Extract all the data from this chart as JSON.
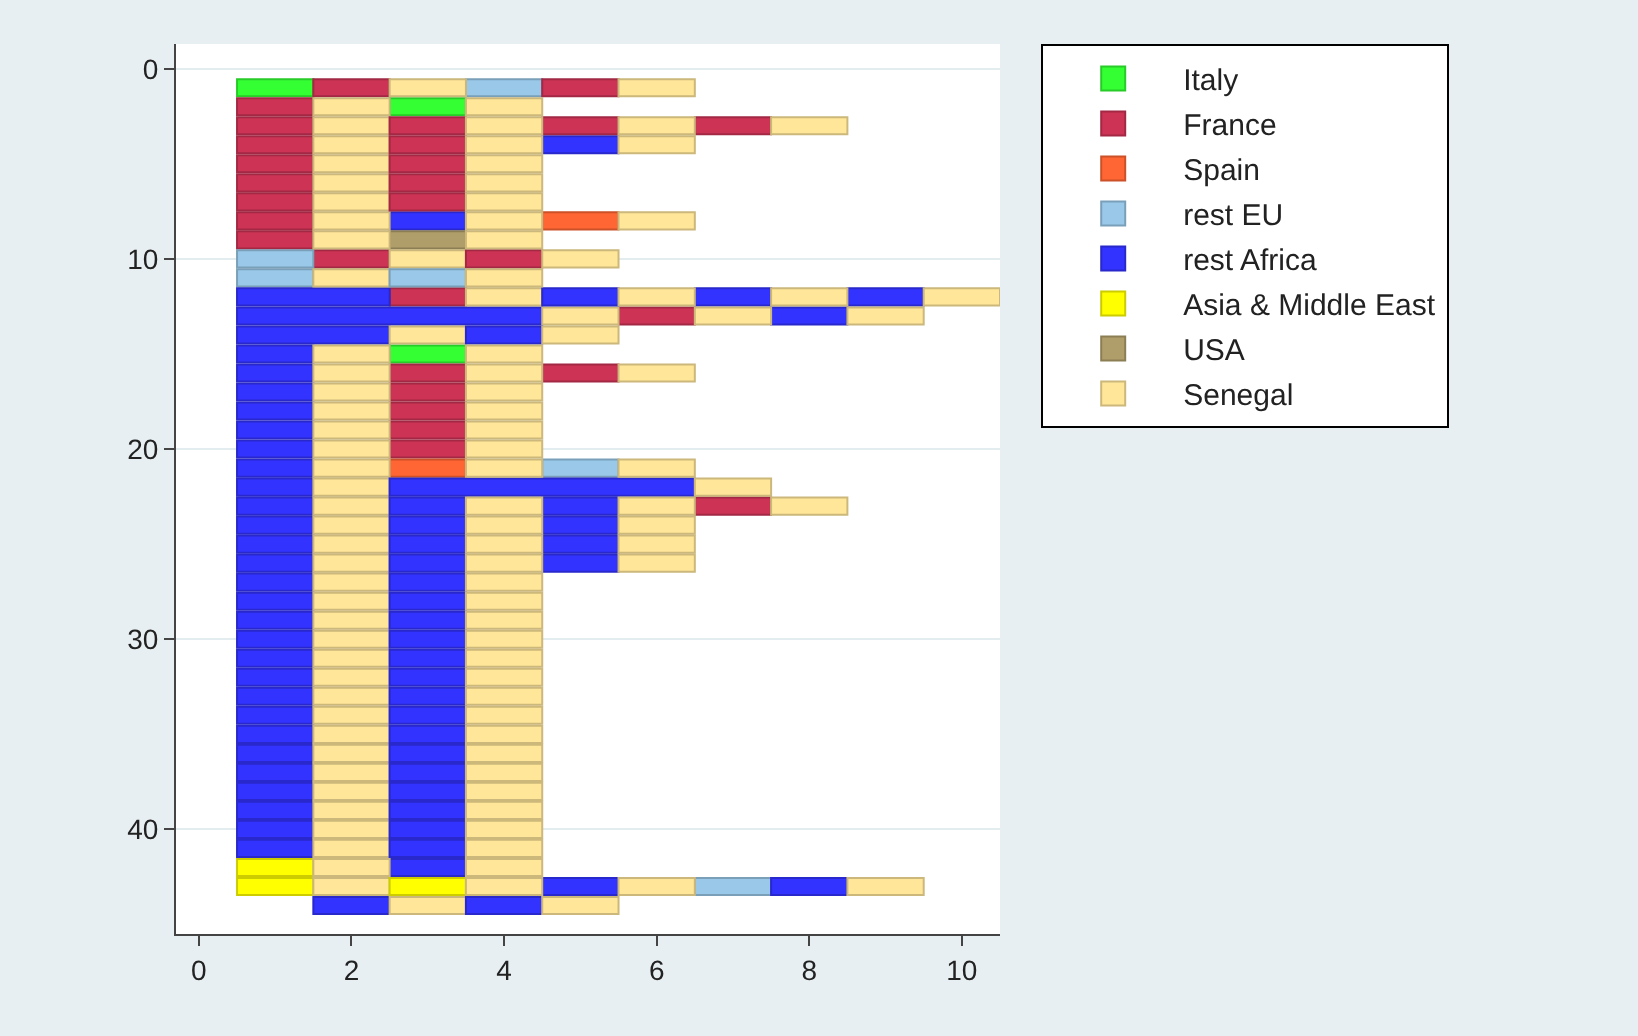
{
  "chart_data": {
    "type": "bar",
    "orientation": "horizontal",
    "xlim": [
      -0.3,
      10.5
    ],
    "xticks": [
      0,
      2,
      4,
      6,
      8,
      10
    ],
    "ylim": [
      45.5,
      -1.3
    ],
    "yticks": [
      0,
      10,
      20,
      30,
      40
    ],
    "grid": "y",
    "legend": "top right",
    "series": [
      {
        "name": "Italy",
        "color": "#33ff33",
        "x": [
          1,
          2,
          15
        ],
        "base": [
          0.5,
          2.5,
          2.5
        ],
        "values": [
          1,
          1,
          1
        ]
      },
      {
        "name": "France",
        "color": "#cc3355",
        "x": [
          1,
          2,
          3,
          4,
          5,
          6,
          7,
          8,
          9,
          10,
          12,
          13,
          16,
          17,
          18,
          19,
          20,
          23
        ],
        "base": [
          1.5,
          0.5,
          0.5,
          0.5,
          0.5,
          0.5,
          0.5,
          0.5,
          0.5,
          1.5,
          2.5,
          5.5,
          2.5,
          2.5,
          2.5,
          2.5,
          2.5,
          6.5
        ],
        "values": [
          1,
          1,
          1,
          1,
          1,
          1,
          1,
          1,
          1,
          1,
          1,
          1,
          1,
          1,
          1,
          1,
          1,
          1
        ]
      },
      {
        "name": "Spain",
        "color": "#ff6633",
        "x": [
          8,
          21
        ],
        "base": [
          4.5,
          2.5
        ],
        "values": [
          1,
          1
        ]
      },
      {
        "name": "rest EU",
        "color": "#99c8e8",
        "x": [
          1,
          10,
          11,
          21,
          43
        ],
        "base": [
          3.5,
          0.5,
          0.5,
          4.5,
          6.5
        ],
        "values": [
          1,
          1,
          1,
          1,
          1
        ]
      },
      {
        "name": "rest Africa",
        "color": "#3333ff",
        "x": [
          4,
          8,
          12,
          13,
          14,
          15,
          16,
          17,
          18,
          19,
          20,
          21,
          22,
          23,
          24,
          25,
          26,
          27,
          28,
          29,
          30,
          31,
          32,
          33,
          34,
          35,
          36,
          37,
          38,
          39,
          40,
          41,
          42,
          43,
          44
        ],
        "base": [
          4.5,
          2.5,
          0.5,
          0.5,
          0.5,
          0.5,
          0.5,
          0.5,
          0.5,
          0.5,
          0.5,
          0.5,
          0.5,
          0.5,
          0.5,
          0.5,
          0.5,
          0.5,
          0.5,
          0.5,
          0.5,
          0.5,
          0.5,
          0.5,
          0.5,
          0.5,
          0.5,
          0.5,
          0.5,
          0.5,
          0.5,
          0.5,
          2.5,
          4.5,
          1.5
        ],
        "values": [
          1,
          1,
          2,
          4,
          2,
          1,
          1,
          1,
          1,
          1,
          1,
          1,
          1,
          1,
          1,
          1,
          1,
          1,
          1,
          1,
          1,
          1,
          1,
          1,
          1,
          1,
          1,
          1,
          1,
          1,
          1,
          1,
          1,
          1,
          1
        ]
      },
      {
        "name": "Asia & Middle East",
        "color": "#ffff00",
        "x": [
          42,
          43
        ],
        "base": [
          0.5,
          0.5
        ],
        "values": [
          1,
          1
        ]
      },
      {
        "name": "USA",
        "color": "#b09e6a",
        "x": [
          9
        ],
        "base": [
          2.5
        ],
        "values": [
          1
        ]
      },
      {
        "name": "Senegal",
        "color": "#ffe699",
        "x": [
          1,
          2,
          3,
          4,
          5,
          6,
          7,
          8,
          9,
          10,
          11,
          12,
          13,
          14,
          15,
          16,
          17,
          18,
          19,
          20,
          21,
          22,
          23,
          24,
          25,
          26,
          27,
          28,
          29,
          30,
          31,
          32,
          33,
          34,
          35,
          36,
          37,
          38,
          39,
          40,
          41,
          42,
          43,
          44
        ],
        "base": [
          2.5,
          1.5,
          1.5,
          1.5,
          1.5,
          1.5,
          1.5,
          1.5,
          1.5,
          2.5,
          1.5,
          3.5,
          4.5,
          2.5,
          1.5,
          1.5,
          1.5,
          1.5,
          1.5,
          1.5,
          1.5,
          1.5,
          1.5,
          1.5,
          1.5,
          1.5,
          1.5,
          1.5,
          1.5,
          1.5,
          1.5,
          1.5,
          1.5,
          1.5,
          1.5,
          1.5,
          1.5,
          1.5,
          1.5,
          1.5,
          1.5,
          1.5,
          1.5,
          2.5
        ],
        "values": [
          1,
          1,
          1,
          1,
          1,
          1,
          1,
          1,
          1,
          1,
          1,
          1,
          1,
          1,
          1,
          1,
          1,
          1,
          1,
          1,
          1,
          1,
          1,
          1,
          1,
          1,
          1,
          1,
          1,
          1,
          1,
          1,
          1,
          1,
          1,
          1,
          1,
          1,
          1,
          1,
          1,
          1,
          1,
          1
        ]
      },
      {
        "color": "#cc3355",
        "x": [
          1,
          3,
          4,
          5,
          6,
          7,
          10,
          16
        ],
        "base": [
          4.5,
          2.5,
          2.5,
          2.5,
          2.5,
          2.5,
          3.5,
          4.5
        ],
        "values": [
          1,
          1,
          1,
          1,
          1,
          1,
          1,
          1
        ]
      },
      {
        "color": "#cc3355",
        "x": [
          3
        ],
        "base": [
          4.5
        ],
        "values": [
          1
        ]
      },
      {
        "color": "#cc3355",
        "x": [
          3
        ],
        "base": [
          6.5
        ],
        "values": [
          1
        ]
      },
      {
        "color": "#99c8e8",
        "x": [
          11
        ],
        "base": [
          2.5
        ],
        "values": [
          1
        ]
      },
      {
        "color": "#3333ff",
        "x": [
          12,
          13,
          14,
          22,
          23,
          24,
          25,
          26,
          27,
          28,
          29,
          30,
          31,
          32,
          33,
          34,
          35,
          36,
          37,
          38,
          39,
          40,
          41,
          43,
          44
        ],
        "base": [
          4.5,
          7.5,
          3.5,
          2.5,
          2.5,
          2.5,
          2.5,
          2.5,
          2.5,
          2.5,
          2.5,
          2.5,
          2.5,
          2.5,
          2.5,
          2.5,
          2.5,
          2.5,
          2.5,
          2.5,
          2.5,
          2.5,
          2.5,
          7.5,
          3.5
        ],
        "values": [
          1,
          1,
          1,
          4,
          1,
          1,
          1,
          1,
          1,
          1,
          1,
          1,
          1,
          1,
          1,
          1,
          1,
          1,
          1,
          1,
          1,
          1,
          1,
          1,
          1
        ]
      },
      {
        "color": "#3333ff",
        "x": [
          12,
          23,
          24,
          25,
          26
        ],
        "base": [
          6.5,
          4.5,
          4.5,
          4.5,
          4.5
        ],
        "values": [
          1,
          1,
          1,
          1,
          1
        ]
      },
      {
        "color": "#3333ff",
        "x": [
          12
        ],
        "base": [
          8.5
        ],
        "values": [
          1
        ]
      },
      {
        "color": "#ffff00",
        "x": [
          43
        ],
        "base": [
          2.5
        ],
        "values": [
          1
        ]
      },
      {
        "color": "#ffe699",
        "x": [
          1,
          2,
          3,
          4,
          5,
          6,
          7,
          8,
          9,
          10,
          11,
          12,
          13,
          14,
          15,
          16,
          17,
          18,
          19,
          20,
          21,
          22,
          23,
          24,
          25,
          26,
          27,
          28,
          29,
          30,
          31,
          32,
          33,
          34,
          35,
          36,
          37,
          38,
          39,
          40,
          41,
          42,
          43,
          44
        ],
        "base": [
          5.5,
          3.5,
          3.5,
          3.5,
          3.5,
          3.5,
          3.5,
          3.5,
          3.5,
          4.5,
          3.5,
          5.5,
          6.5,
          4.5,
          3.5,
          3.5,
          3.5,
          3.5,
          3.5,
          3.5,
          3.5,
          6.5,
          3.5,
          3.5,
          3.5,
          3.5,
          3.5,
          3.5,
          3.5,
          3.5,
          3.5,
          3.5,
          3.5,
          3.5,
          3.5,
          3.5,
          3.5,
          3.5,
          3.5,
          3.5,
          3.5,
          3.5,
          3.5,
          4.5
        ],
        "values": [
          1,
          1,
          1,
          1,
          1,
          1,
          1,
          1,
          1,
          1,
          1,
          1,
          1,
          1,
          1,
          1,
          1,
          1,
          1,
          1,
          1,
          1,
          1,
          1,
          1,
          1,
          1,
          1,
          1,
          1,
          1,
          1,
          1,
          1,
          1,
          1,
          1,
          1,
          1,
          1,
          1,
          1,
          1,
          1
        ]
      },
      {
        "color": "#ffe699",
        "x": [
          3,
          4,
          8,
          12,
          13,
          16,
          21,
          23,
          24,
          25,
          26,
          43
        ],
        "base": [
          5.5,
          5.5,
          5.5,
          7.5,
          8.5,
          5.5,
          5.5,
          5.5,
          5.5,
          5.5,
          5.5,
          5.5
        ],
        "values": [
          1,
          1,
          1,
          1,
          1,
          1,
          1,
          1,
          1,
          1,
          1,
          1
        ]
      },
      {
        "color": "#ffe699",
        "x": [
          3,
          12,
          23,
          43
        ],
        "base": [
          7.5,
          9.5,
          7.5,
          8.5
        ],
        "values": [
          1,
          1,
          1,
          1
        ]
      }
    ]
  }
}
